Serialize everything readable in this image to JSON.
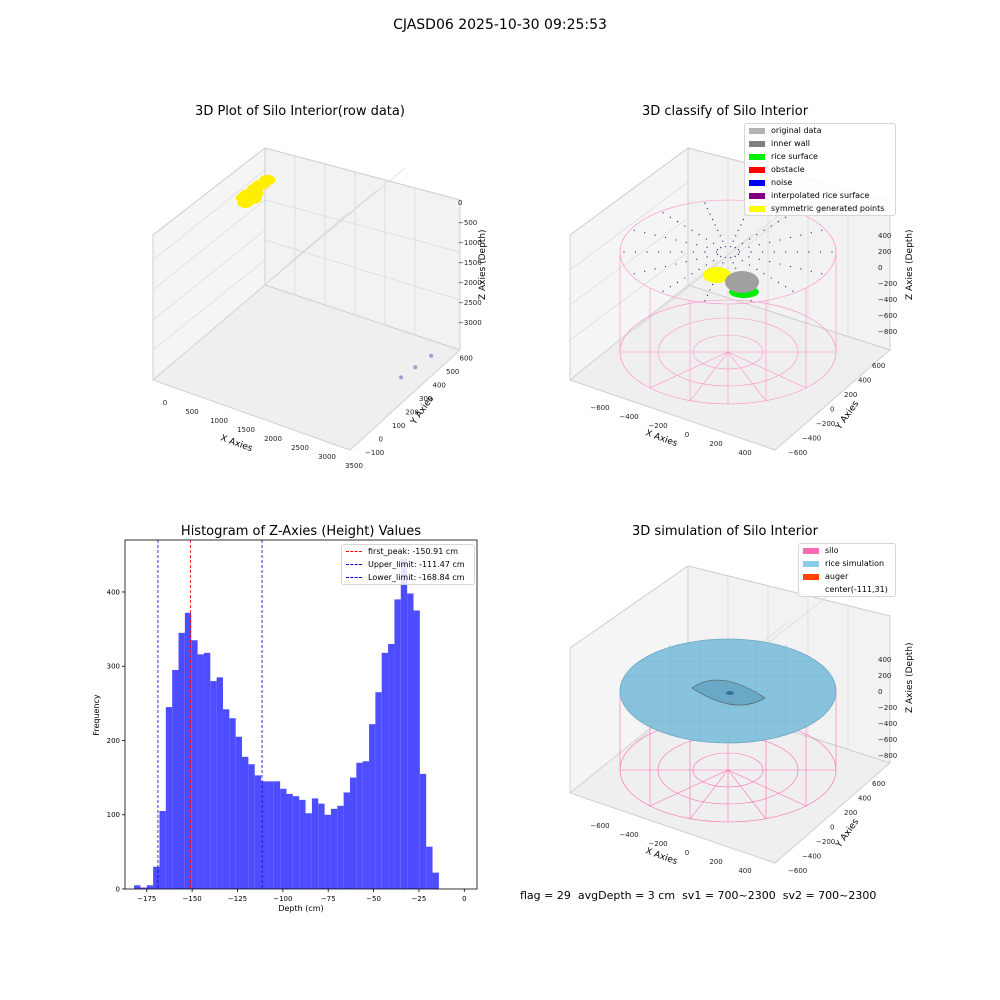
{
  "page_title": "CJASD06 2025-10-30 09:25:53",
  "status": {
    "flag": "flag = 29",
    "avg_depth": "avgDepth = 3 cm",
    "sv1": "sv1 = 700~2300",
    "sv2": "sv2 = 700~2300"
  },
  "chart_data": [
    {
      "type": "scatter",
      "projection": "3d",
      "title": "3D Plot of Silo Interior(row data)",
      "xlabel": "X Axies",
      "ylabel": "Y Axies",
      "zlabel": "Z Axies (Depth)",
      "xticks": [
        "0",
        "500",
        "1000",
        "1500",
        "2000",
        "2500",
        "3000",
        "3500"
      ],
      "yticks": [
        "−100",
        "0",
        "100",
        "200",
        "300",
        "400",
        "500",
        "600"
      ],
      "zticks": [
        "−3000",
        "−2500",
        "−2000",
        "−1500",
        "−1000",
        "−500",
        "0"
      ],
      "xlim": [
        -100,
        3700
      ],
      "ylim": [
        -120,
        620
      ],
      "zlim": [
        -3300,
        100
      ],
      "series": [
        {
          "color": "#ffee00",
          "points": [
            [
              -80,
              500,
              -800
            ],
            [
              0,
              520,
              -700
            ],
            [
              80,
              540,
              -620
            ],
            [
              -40,
              470,
              -900
            ],
            [
              40,
              510,
              -760
            ],
            [
              120,
              560,
              -560
            ],
            [
              -100,
              480,
              -840
            ],
            [
              20,
              545,
              -680
            ],
            [
              60,
              490,
              -820
            ]
          ]
        },
        {
          "color": "#9aa0d0",
          "points": [
            [
              3400,
              320,
              -3050
            ],
            [
              3500,
              380,
              -2950
            ],
            [
              3600,
              450,
              -2850
            ]
          ]
        }
      ]
    },
    {
      "type": "scatter",
      "projection": "3d",
      "title": "3D classify of Silo Interior",
      "xlabel": "X Axies",
      "ylabel": "Y Axies",
      "zlabel": "Z Axies (Depth)",
      "xticks": [
        "−600",
        "−400",
        "−200",
        "0",
        "200",
        "400"
      ],
      "yticks": [
        "−600",
        "−400",
        "−200",
        "0",
        "200",
        "400",
        "600"
      ],
      "zticks": [
        "−800",
        "−600",
        "−400",
        "−200",
        "0",
        "200",
        "400"
      ],
      "legend": [
        {
          "label": "original data",
          "color": "#b3b3b3"
        },
        {
          "label": "inner wall",
          "color": "#808080"
        },
        {
          "label": "rice surface",
          "color": "#00ee00"
        },
        {
          "label": "obstacle",
          "color": "#ff0000"
        },
        {
          "label": "noise",
          "color": "#0000ee"
        },
        {
          "label": "interpolated rice surface",
          "color": "#800080"
        },
        {
          "label": "symmetric generated points",
          "color": "#ffff00"
        }
      ]
    },
    {
      "type": "bar",
      "title": "Histogram of Z-Axies (Height) Values",
      "xlabel": "Depth (cm)",
      "ylabel": "Frequency",
      "xlim": [
        -187,
        7
      ],
      "ylim": [
        0,
        470
      ],
      "xticks": [
        -175,
        -150,
        -125,
        -100,
        -75,
        -50,
        -25,
        0
      ],
      "yticks": [
        0,
        100,
        200,
        300,
        400
      ],
      "bin_start": -182,
      "bin_width": 3.5,
      "bar_color": "#4d4dff",
      "values": [
        5,
        2,
        5,
        30,
        105,
        245,
        295,
        345,
        372,
        335,
        316,
        318,
        280,
        285,
        242,
        230,
        205,
        178,
        168,
        153,
        145,
        145,
        145,
        135,
        128,
        125,
        120,
        102,
        122,
        115,
        100,
        108,
        112,
        130,
        150,
        170,
        172,
        222,
        265,
        318,
        330,
        390,
        445,
        398,
        375,
        155,
        57,
        22
      ],
      "lines": [
        {
          "label": "first_peak: -150.91 cm",
          "x": -150.91,
          "color": "#ff0000"
        },
        {
          "label": "Upper_limit: -111.47 cm",
          "x": -111.47,
          "color": "#0000cc"
        },
        {
          "label": "Lower_limit: -168.84 cm",
          "x": -168.84,
          "color": "#0000cc"
        }
      ]
    },
    {
      "type": "area",
      "projection": "3d",
      "title": "3D simulation of Silo Interior",
      "xlabel": "X Axies",
      "ylabel": "Y Axies",
      "zlabel": "Z Axies (Depth)",
      "xticks": [
        "−600",
        "−400",
        "−200",
        "0",
        "200",
        "400"
      ],
      "yticks": [
        "−600",
        "−400",
        "−200",
        "0",
        "200",
        "400",
        "600"
      ],
      "zticks": [
        "−800",
        "−600",
        "−400",
        "−200",
        "0",
        "200",
        "400"
      ],
      "legend": [
        {
          "label": "silo",
          "color": "#ff69b4"
        },
        {
          "label": "rice simulation",
          "color": "#87ceeb"
        },
        {
          "label": "auger",
          "color": "#ff4500"
        },
        {
          "label": "center(-111,31)",
          "color": ""
        }
      ]
    }
  ]
}
